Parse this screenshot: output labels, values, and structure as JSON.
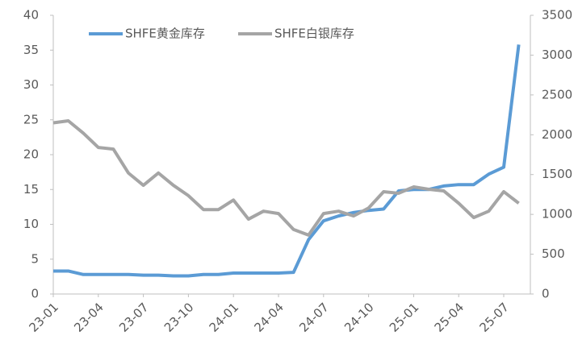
{
  "chart_data": {
    "type": "line",
    "categories": [
      "23-01",
      null,
      null,
      "23-04",
      null,
      null,
      "23-07",
      null,
      null,
      "23-10",
      null,
      null,
      "24-01",
      null,
      null,
      "24-04",
      null,
      null,
      "24-07",
      null,
      null,
      "24-10",
      null,
      null,
      "25-01",
      null,
      null,
      "25-04",
      null,
      null,
      "25-07",
      null
    ],
    "series": [
      {
        "name": "SHFE黄金库存",
        "color": "#5b9bd5",
        "values": [
          3.3,
          3.3,
          2.8,
          2.8,
          2.8,
          2.8,
          2.7,
          2.7,
          2.6,
          2.6,
          2.8,
          2.8,
          3.0,
          3.0,
          3.0,
          3.0,
          3.1,
          7.8,
          10.5,
          11.2,
          11.7,
          12.0,
          12.2,
          14.8,
          15.0,
          15.0,
          15.5,
          15.7,
          15.7,
          17.2,
          18.2,
          35.8
        ]
      },
      {
        "name": "SHFE白银库存",
        "color": "#a5a5a5",
        "axis": "y2",
        "values": [
          2150,
          2175,
          2020,
          1840,
          1820,
          1520,
          1365,
          1520,
          1365,
          1235,
          1060,
          1060,
          1180,
          940,
          1040,
          1010,
          810,
          740,
          1010,
          1040,
          980,
          1080,
          1285,
          1265,
          1345,
          1315,
          1295,
          1140,
          960,
          1040,
          1285,
          1140
        ]
      }
    ],
    "ylim": [
      0,
      40
    ],
    "yticks": [
      0,
      5,
      10,
      15,
      20,
      25,
      30,
      35,
      40
    ],
    "y2lim": [
      0,
      3500
    ],
    "y2ticks": [
      0,
      500,
      1000,
      1500,
      2000,
      2500,
      3000,
      3500
    ],
    "grid": false,
    "legend": "top"
  }
}
